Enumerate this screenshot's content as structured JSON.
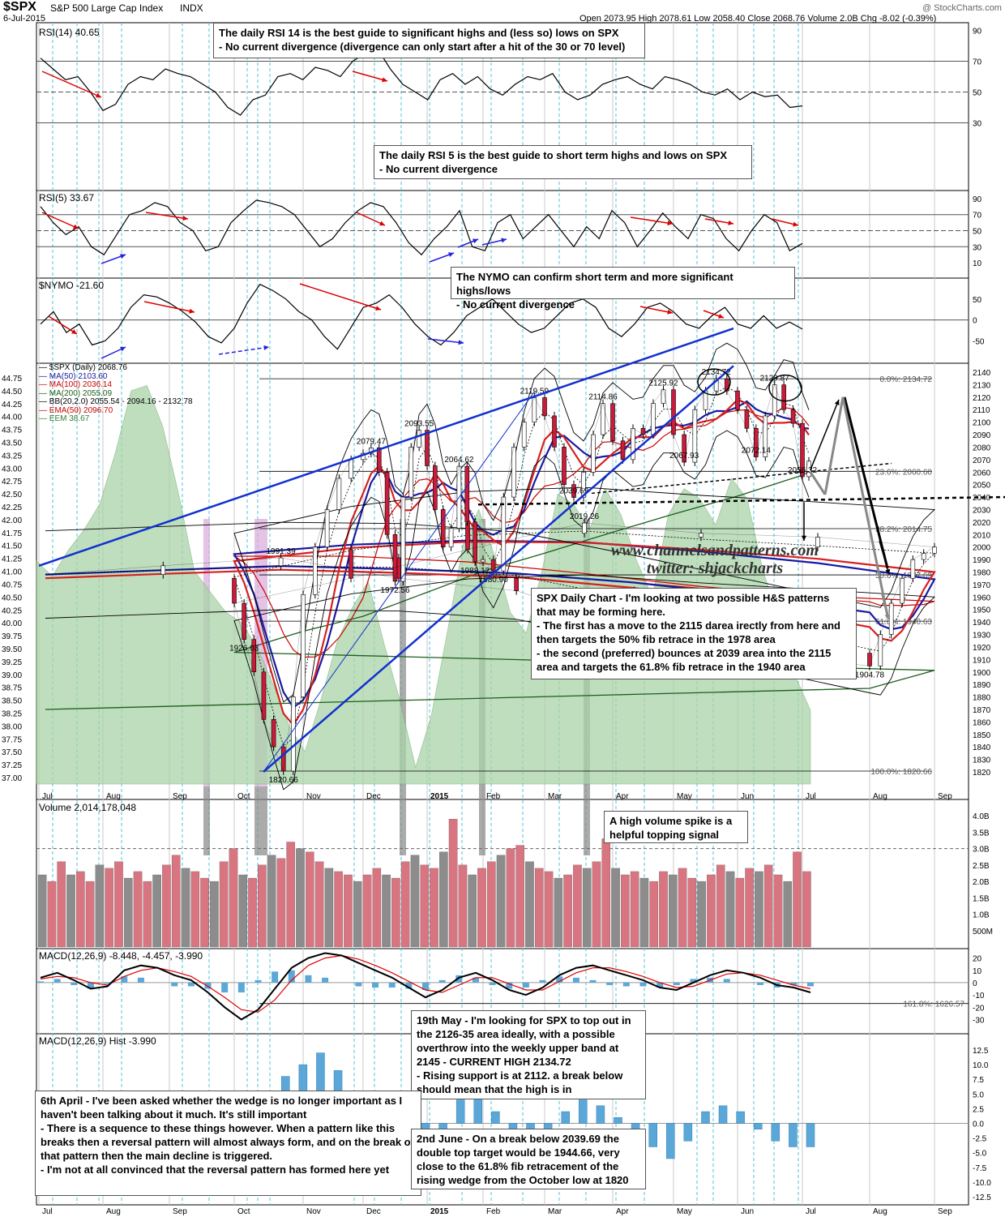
{
  "header": {
    "symbol": "$SPX",
    "name": "S&P 500 Large Cap Index",
    "exchange": "INDX",
    "date": "6-Jul-2015",
    "ohlc": "Open 2073.95  High 2078.61  Low 2058.40  Close 2068.76  Volume 2.0B  Chg -8.02 (-0.39%)",
    "brand": "@ StockCharts.com"
  },
  "panels": {
    "rsi14_label": "RSI(14) 40.65",
    "rsi5_label": "RSI(5) 33.67",
    "nymo_label": "$NYMO -21.60",
    "volume_label": "Volume 2,014,178,048",
    "macd_label": "MACD(12,26,9) -8.448, -4.457, -3.990",
    "hist_label": "MACD(12,26,9) Hist -3.990"
  },
  "legend": [
    {
      "text": "$SPX (Daily) 2068.76",
      "color": "#000000"
    },
    {
      "text": "MA(50) 2103.60",
      "color": "#1a1aa0"
    },
    {
      "text": "MA(100) 2036.14",
      "color": "#cc0000"
    },
    {
      "text": "MA(200) 2055.09",
      "color": "#1d5e1d"
    },
    {
      "text": "BB(20,2.0) 2055.54 - 2094.16 - 2132.78",
      "color": "#000000"
    },
    {
      "text": "EMA(50) 2096.70",
      "color": "#cc0000"
    },
    {
      "text": "EEM 38.67",
      "color": "#2e7d32"
    }
  ],
  "notes": {
    "rsi14": [
      "The daily RSI 14 is the best guide to significant highs and (less so) lows on SPX",
      "- No current divergence (divergence can only start after a hit of the 30 or 70 level)"
    ],
    "rsi5": [
      "The daily RSI 5 is the best guide to short term highs and lows on SPX",
      "- No current divergence"
    ],
    "nymo": [
      "The NYMO can confirm short term and more significant highs/lows",
      "- No current divergence"
    ],
    "daily": [
      "SPX Daily Chart - I'm looking at two possible H&S patterns that may be forming here.",
      "- The first has a move to the 2115 darea irectly from here and then targets the 50% fib retrace in the 1978 area",
      "- the second (preferred) bounces at 2039 area into the 2115 area and targets the 61.8% fib retrace  in the 1940 area"
    ],
    "volume": [
      "A high volume spike is a helpful topping signal"
    ],
    "may19": [
      "19th May - I'm looking for SPX to top out in the 2126-35 area ideally, with a possible overthrow into the weekly upper band at 2145 - CURRENT HIGH 2134.72",
      "- Rising support is at 2112. a break below should mean that the high is in"
    ],
    "april6": [
      "6th April - I've been asked whether the wedge is no longer important as I haven't been talking about it much.  It's still important",
      "- There is a sequence to these things however. When a pattern like this breaks then a reversal pattern will almost always form, and on the break of that pattern then the main decline is triggered.",
      "- I'm not at all convinced that the reversal pattern has formed here yet"
    ],
    "june2": [
      "2nd June - On a break below 2039.69 the double top target would be 1944.66, very close to the 61.8% fib retracement of the rising wedge from the October low at 1820"
    ]
  },
  "watermark": {
    "line1": "www.channelsandpatterns.com",
    "line2": "twitter: shjackcharts"
  },
  "chart_data": {
    "type": "line",
    "x_labels": [
      "Jul",
      "Aug",
      "Sep",
      "Oct",
      "Nov",
      "Dec",
      "2015",
      "Feb",
      "Mar",
      "Apr",
      "May",
      "Jun",
      "Jul",
      "Aug",
      "Sep"
    ],
    "price_axis": {
      "min": 1815,
      "max": 2145,
      "ticks": [
        1820,
        1830,
        1840,
        1850,
        1860,
        1870,
        1880,
        1890,
        1900,
        1910,
        1920,
        1930,
        1940,
        1950,
        1960,
        1970,
        1980,
        1990,
        2000,
        2010,
        2020,
        2030,
        2040,
        2050,
        2060,
        2070,
        2080,
        2090,
        2100,
        2110,
        2120,
        2130,
        2140
      ]
    },
    "eem_axis": {
      "min": 36.875,
      "max": 44.875,
      "ticks": [
        "37.00",
        "37.25",
        "37.50",
        "37.75",
        "38.00",
        "38.25",
        "38.50",
        "38.75",
        "39.00",
        "39.25",
        "39.50",
        "39.75",
        "40.00",
        "40.25",
        "40.50",
        "40.75",
        "41.00",
        "41.25",
        "41.50",
        "41.75",
        "42.00",
        "42.25",
        "42.50",
        "42.75",
        "43.00",
        "43.25",
        "43.50",
        "43.75",
        "44.00",
        "44.25",
        "44.50",
        "44.75"
      ]
    },
    "price_path": [
      [
        "Jul",
        1978
      ],
      [
        "",
        1985
      ],
      [
        "",
        1991.39
      ],
      [
        "",
        1975
      ],
      [
        "",
        1965
      ],
      [
        "",
        1935
      ],
      [
        "",
        1915
      ],
      [
        "Aug",
        1904.78
      ],
      [
        "",
        1930
      ],
      [
        "",
        1955
      ],
      [
        "",
        1975
      ],
      [
        "",
        1990
      ],
      [
        "",
        1995
      ],
      [
        "Sep",
        2000
      ],
      [
        "",
        2008
      ],
      [
        "",
        2011
      ],
      [
        "",
        2019.26
      ],
      [
        "",
        1998
      ],
      [
        "",
        1975
      ],
      [
        "Oct",
        1955
      ],
      [
        "",
        1926.03
      ],
      [
        "",
        1900
      ],
      [
        "",
        1862
      ],
      [
        "",
        1840
      ],
      [
        "",
        1820.66
      ],
      [
        "",
        1880
      ],
      [
        "Nov",
        1962
      ],
      [
        "",
        2000
      ],
      [
        "",
        2030
      ],
      [
        "",
        2055
      ],
      [
        "",
        2070
      ],
      [
        "Dec",
        2075
      ],
      [
        "",
        2079.47
      ],
      [
        "",
        2060
      ],
      [
        "",
        2010
      ],
      [
        "",
        1972.56
      ],
      [
        "",
        2040
      ],
      [
        "",
        2080
      ],
      [
        "",
        2093.55
      ],
      [
        "2015",
        2065
      ],
      [
        "",
        2030
      ],
      [
        "",
        2000
      ],
      [
        "",
        2015
      ],
      [
        "",
        2064.62
      ],
      [
        "",
        2020
      ],
      [
        "",
        1988.12
      ],
      [
        "Feb",
        1990
      ],
      [
        "",
        1980.9
      ],
      [
        "",
        2040
      ],
      [
        "",
        2080
      ],
      [
        "",
        2100
      ],
      [
        "",
        2119.59
      ],
      [
        "Mar",
        2105
      ],
      [
        "",
        2080
      ],
      [
        "",
        2050
      ],
      [
        "",
        2039.69
      ],
      [
        "",
        2060
      ],
      [
        "",
        2090
      ],
      [
        "",
        2114.86
      ],
      [
        "Apr",
        2085
      ],
      [
        "",
        2070
      ],
      [
        "",
        2095
      ],
      [
        "",
        2090
      ],
      [
        "",
        2115
      ],
      [
        "",
        2125.92
      ],
      [
        "May",
        2090
      ],
      [
        "",
        2067.93
      ],
      [
        "",
        2110
      ],
      [
        "",
        2125
      ],
      [
        "",
        2134.72
      ],
      [
        "",
        2125
      ],
      [
        "Jun",
        2110
      ],
      [
        "",
        2095
      ],
      [
        "",
        2072.14
      ],
      [
        "",
        2105
      ],
      [
        "",
        2129.87
      ],
      [
        "",
        2110
      ],
      [
        "",
        2099
      ],
      [
        "Jul",
        2056.32
      ],
      [
        "",
        2068.76
      ]
    ],
    "price_labels": [
      {
        "text": "1991.39",
        "x": "Jul",
        "v": 1991.39
      },
      {
        "text": "1904.78",
        "x": "Aug",
        "v": 1904.78
      },
      {
        "text": "2019.26",
        "x": "Sep",
        "v": 2019.26
      },
      {
        "text": "1926.03",
        "x": "Oct",
        "v": 1926.03
      },
      {
        "text": "1820.66",
        "x": "Oct",
        "v": 1820.66
      },
      {
        "text": "2079.47",
        "x": "Dec",
        "v": 2079.47
      },
      {
        "text": "1972.56",
        "x": "Dec",
        "v": 1972.56
      },
      {
        "text": "2093.55",
        "x": "Dec",
        "v": 2093.55
      },
      {
        "text": "2064.62",
        "x": "2015",
        "v": 2064.62
      },
      {
        "text": "1988.12",
        "x": "2015",
        "v": 1988.12
      },
      {
        "text": "1980.90",
        "x": "Feb",
        "v": 1980.9
      },
      {
        "text": "2119.59",
        "x": "Feb",
        "v": 2119.59
      },
      {
        "text": "2039.69",
        "x": "Mar",
        "v": 2039.69
      },
      {
        "text": "2114.86",
        "x": "Mar",
        "v": 2114.86
      },
      {
        "text": "2125.92",
        "x": "Apr",
        "v": 2125.92
      },
      {
        "text": "2067.93",
        "x": "Apr",
        "v": 2067.93
      },
      {
        "text": "2134.72",
        "x": "May",
        "v": 2134.72
      },
      {
        "text": "2072.14",
        "x": "Jun",
        "v": 2072.14
      },
      {
        "text": "2129.87",
        "x": "Jun",
        "v": 2129.87
      },
      {
        "text": "2056.32",
        "x": "Jul",
        "v": 2056.32
      }
    ],
    "fib_levels": [
      {
        "label": "0.0%: 2134.72",
        "v": 2134.72
      },
      {
        "label": "23.6%: 2060.60",
        "v": 2060.6
      },
      {
        "label": "38.2%: 2014.75",
        "v": 2014.75
      },
      {
        "label": "50.0%: 1977.69",
        "v": 1977.69
      },
      {
        "label": "61.8%: 1940.63",
        "v": 1940.63
      },
      {
        "label": "100.0%: 1820.66",
        "v": 1820.66
      }
    ],
    "rsi14": {
      "ticks": [
        "90",
        "70",
        "50",
        "30"
      ],
      "levels": [
        30,
        50,
        70
      ],
      "values": [
        72,
        65,
        58,
        60,
        50,
        38,
        42,
        55,
        60,
        58,
        65,
        62,
        60,
        55,
        50,
        40,
        35,
        45,
        48,
        60,
        62,
        58,
        66,
        64,
        60,
        70,
        75,
        78,
        65,
        55,
        50,
        45,
        58,
        62,
        55,
        60,
        52,
        48,
        55,
        60,
        58,
        62,
        50,
        45,
        48,
        55,
        58,
        60,
        55,
        52,
        60,
        58,
        55,
        50,
        48,
        52,
        45,
        50,
        47,
        48,
        40,
        41
      ]
    },
    "rsi5": {
      "ticks": [
        "90",
        "70",
        "50",
        "30",
        "10"
      ],
      "levels": [
        30,
        50,
        70
      ],
      "values": [
        80,
        60,
        45,
        55,
        30,
        20,
        45,
        70,
        75,
        85,
        80,
        60,
        50,
        25,
        30,
        60,
        75,
        88,
        85,
        80,
        70,
        50,
        30,
        40,
        60,
        75,
        85,
        80,
        60,
        35,
        20,
        40,
        55,
        75,
        30,
        25,
        60,
        70,
        40,
        55,
        70,
        50,
        30,
        55,
        40,
        75,
        60,
        30,
        50,
        72,
        55,
        40,
        70,
        65,
        40,
        25,
        50,
        70,
        60,
        25,
        34
      ]
    },
    "nymo": {
      "ticks": [
        "50",
        "0",
        "-50"
      ],
      "levels": [
        0
      ],
      "values": [
        -10,
        20,
        -30,
        -10,
        -60,
        -50,
        -20,
        30,
        60,
        55,
        40,
        20,
        -5,
        -40,
        -55,
        -20,
        40,
        85,
        70,
        50,
        20,
        0,
        -40,
        -70,
        -20,
        30,
        40,
        60,
        30,
        -10,
        -40,
        -60,
        -30,
        10,
        30,
        50,
        20,
        -10,
        -30,
        -20,
        10,
        40,
        50,
        30,
        -20,
        -40,
        -10,
        30,
        40,
        20,
        -10,
        -20,
        10,
        30,
        -10,
        -20,
        10,
        -20,
        -5,
        -22
      ]
    },
    "volume": {
      "ticks": [
        "4.0B",
        "3.5B",
        "3.0B",
        "2.5B",
        "2.0B",
        "1.5B",
        "1.0B",
        "500M"
      ],
      "max_b": 4.3,
      "level_b": 3.0,
      "values_b": [
        2.2,
        2.0,
        2.6,
        2.2,
        2.3,
        2.0,
        2.5,
        2.4,
        2.6,
        2.1,
        2.3,
        2.0,
        2.2,
        2.5,
        2.8,
        2.4,
        2.3,
        2.1,
        2.0,
        2.6,
        3.0,
        2.2,
        2.1,
        2.5,
        2.8,
        2.7,
        3.2,
        3.0,
        2.9,
        2.6,
        2.4,
        2.3,
        2.2,
        2.0,
        2.2,
        2.4,
        2.2,
        2.1,
        2.6,
        2.8,
        2.5,
        2.4,
        2.9,
        3.9,
        2.5,
        2.2,
        2.4,
        2.6,
        2.8,
        3.0,
        3.1,
        2.6,
        2.4,
        2.3,
        2.1,
        2.2,
        2.5,
        2.4,
        2.6,
        3.3,
        2.4,
        2.2,
        2.3,
        2.1,
        2.0,
        2.3,
        2.2,
        2.4,
        2.1,
        2.0,
        2.2,
        2.5,
        2.3,
        2.1,
        2.4,
        2.3,
        2.5,
        2.2,
        2.0,
        2.9,
        2.3
      ]
    },
    "macd": {
      "ticks": [
        "20",
        "10",
        "0",
        "-10",
        "-20",
        "-30"
      ],
      "fib_label": "161.8%: 1626.57",
      "line": [
        4,
        8,
        2,
        -5,
        -3,
        10,
        14,
        12,
        6,
        2,
        -8,
        -20,
        -30,
        -22,
        -5,
        12,
        20,
        24,
        22,
        16,
        10,
        4,
        -4,
        -12,
        -6,
        4,
        8,
        2,
        -6,
        -10,
        -4,
        6,
        12,
        14,
        10,
        6,
        2,
        -4,
        -6,
        0,
        6,
        10,
        8,
        4,
        -2,
        -4,
        -8
      ],
      "signal": [
        3,
        5,
        4,
        0,
        -2,
        5,
        10,
        12,
        9,
        5,
        -3,
        -12,
        -22,
        -24,
        -14,
        2,
        14,
        20,
        22,
        19,
        14,
        8,
        1,
        -6,
        -8,
        -2,
        4,
        4,
        -1,
        -6,
        -6,
        1,
        8,
        12,
        12,
        9,
        5,
        0,
        -4,
        -3,
        2,
        7,
        8,
        6,
        2,
        -2,
        -5
      ]
    },
    "hist": {
      "ticks": [
        "12.5",
        "10.0",
        "7.5",
        "5.0",
        "2.5",
        "0.0",
        "-2.5",
        "-5.0",
        "-7.5",
        "-10.0",
        "-12.5"
      ],
      "values": [
        1,
        2,
        -1,
        -3,
        -1,
        4,
        3,
        0,
        -2,
        -4,
        -5,
        -8,
        -9,
        -2,
        8,
        10,
        12,
        9,
        4,
        -3,
        -5,
        -6,
        -8,
        -3,
        4,
        5,
        2,
        -3,
        -5,
        -4,
        2,
        4,
        3,
        1,
        -2,
        -4,
        -6,
        -3,
        2,
        3,
        2,
        -1,
        -3,
        -4,
        -4
      ]
    }
  }
}
